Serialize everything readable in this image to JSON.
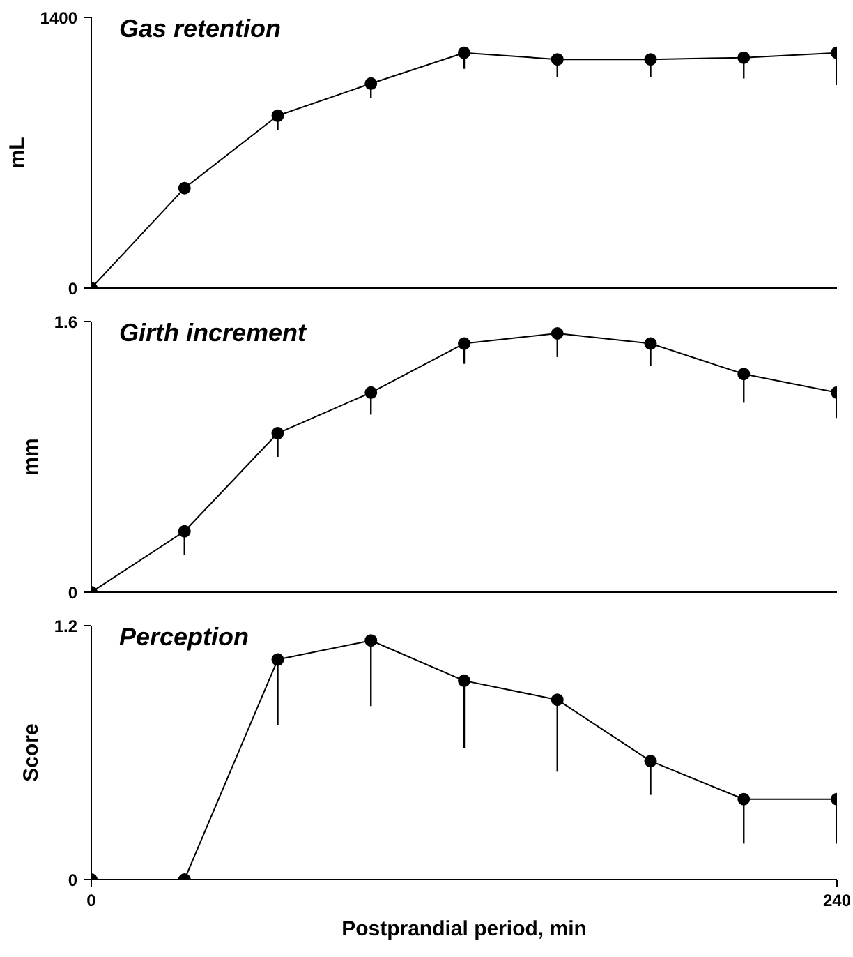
{
  "chart_data": [
    {
      "type": "line",
      "title": "Gas retention",
      "ylabel": "mL",
      "x": [
        0,
        30,
        60,
        90,
        120,
        150,
        180,
        210,
        240
      ],
      "xlim": [
        0,
        240
      ],
      "xticks": [
        0,
        240
      ],
      "ylim": [
        0,
        1400
      ],
      "yticks": [
        0,
        1400
      ],
      "tick_labels": "y",
      "marker": "circle",
      "line_style": "solid",
      "series": [
        {
          "color": "#000000",
          "values": [
            0,
            517,
            892,
            1058,
            1217,
            1183,
            1183,
            1192,
            1217
          ],
          "errors": [
            null,
            null,
            [
              817,
              892
            ],
            [
              983,
              1058
            ],
            [
              1134,
              1217
            ],
            [
              1091,
              1183
            ],
            [
              1091,
              1183
            ],
            [
              1084,
              1192
            ],
            [
              1050,
              1217
            ]
          ]
        }
      ]
    },
    {
      "type": "line",
      "title": "Girth increment",
      "ylabel": "mm",
      "x": [
        0,
        30,
        60,
        90,
        120,
        150,
        180,
        210,
        240
      ],
      "xlim": [
        0,
        240
      ],
      "xticks": [
        0,
        240
      ],
      "ylim": [
        0,
        1.6
      ],
      "yticks": [
        0,
        1.6
      ],
      "tick_labels": "y",
      "marker": "circle",
      "line_style": "solid",
      "series": [
        {
          "color": "#000000",
          "values": [
            0,
            0.36,
            0.94,
            1.18,
            1.47,
            1.53,
            1.47,
            1.29,
            1.18
          ],
          "errors": [
            null,
            [
              0.22,
              0.36
            ],
            [
              0.8,
              0.94
            ],
            [
              1.05,
              1.18
            ],
            [
              1.35,
              1.47
            ],
            [
              1.39,
              1.53
            ],
            [
              1.34,
              1.47
            ],
            [
              1.12,
              1.29
            ],
            [
              1.03,
              1.18
            ]
          ]
        }
      ]
    },
    {
      "type": "line",
      "title": "Perception",
      "ylabel": "Score",
      "xlabel": "Postprandial period, min",
      "x": [
        0,
        30,
        60,
        90,
        120,
        150,
        180,
        210,
        240
      ],
      "xlim": [
        0,
        240
      ],
      "xticks": [
        0,
        240
      ],
      "ylim": [
        0,
        1.2
      ],
      "yticks": [
        0,
        1.2
      ],
      "marker": "circle",
      "line_style": "solid",
      "series": [
        {
          "color": "#000000",
          "values": [
            0,
            0,
            1.04,
            1.13,
            0.94,
            0.85,
            0.56,
            0.38,
            0.38
          ],
          "errors": [
            null,
            null,
            [
              0.73,
              1.04
            ],
            [
              0.82,
              1.13
            ],
            [
              0.62,
              0.94
            ],
            [
              0.51,
              0.85
            ],
            [
              0.4,
              0.56
            ],
            [
              0.17,
              0.38
            ],
            [
              0.17,
              0.38
            ]
          ]
        }
      ]
    }
  ]
}
